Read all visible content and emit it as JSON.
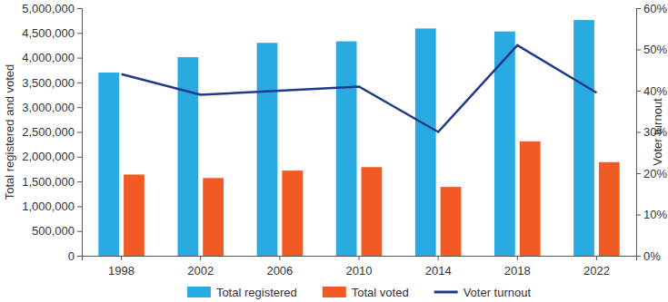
{
  "chart_data": {
    "type": "bar",
    "categories": [
      "1998",
      "2002",
      "2006",
      "2010",
      "2014",
      "2018",
      "2022"
    ],
    "series": [
      {
        "name": "Total registered",
        "type": "bar",
        "color": "#29abe2",
        "values": [
          3700000,
          4010000,
          4300000,
          4330000,
          4590000,
          4530000,
          4760000
        ]
      },
      {
        "name": "Total voted",
        "type": "bar",
        "color": "#f15a24",
        "values": [
          1640000,
          1570000,
          1720000,
          1790000,
          1390000,
          2310000,
          1890000
        ]
      },
      {
        "name": "Voter turnout",
        "type": "line",
        "color": "#1f3a8a",
        "axis": "y2",
        "values": [
          44,
          39,
          40,
          41,
          30,
          51,
          39.5
        ]
      }
    ],
    "y_label": "Total registered and voted",
    "y2_label": "Voter turnout",
    "ylim": [
      0,
      5000000
    ],
    "yticks": [
      0,
      {
        "value": 500000,
        "label": "500,000"
      },
      {
        "value": 1000000,
        "label": "1,000,000"
      },
      {
        "value": 1500000,
        "label": "1,500,000"
      },
      {
        "value": 2000000,
        "label": "2,000,000"
      },
      {
        "value": 2500000,
        "label": "2,500,000"
      },
      {
        "value": 3000000,
        "label": "3,000,000"
      },
      {
        "value": 3500000,
        "label": "3,500,000"
      },
      {
        "value": 4000000,
        "label": "4,000,000"
      },
      {
        "value": 4500000,
        "label": "4,500,000"
      },
      {
        "value": 5000000,
        "label": "5,000,000"
      }
    ],
    "y2lim": [
      0,
      60
    ],
    "y2ticks": [
      {
        "value": 0,
        "label": "0%"
      },
      {
        "value": 10,
        "label": "10%"
      },
      {
        "value": 20,
        "label": "20%"
      },
      {
        "value": 30,
        "label": "30%"
      },
      {
        "value": 40,
        "label": "40%"
      },
      {
        "value": 50,
        "label": "50%"
      },
      {
        "value": 60,
        "label": "60%"
      }
    ],
    "grid": false,
    "legend": "bottom"
  }
}
